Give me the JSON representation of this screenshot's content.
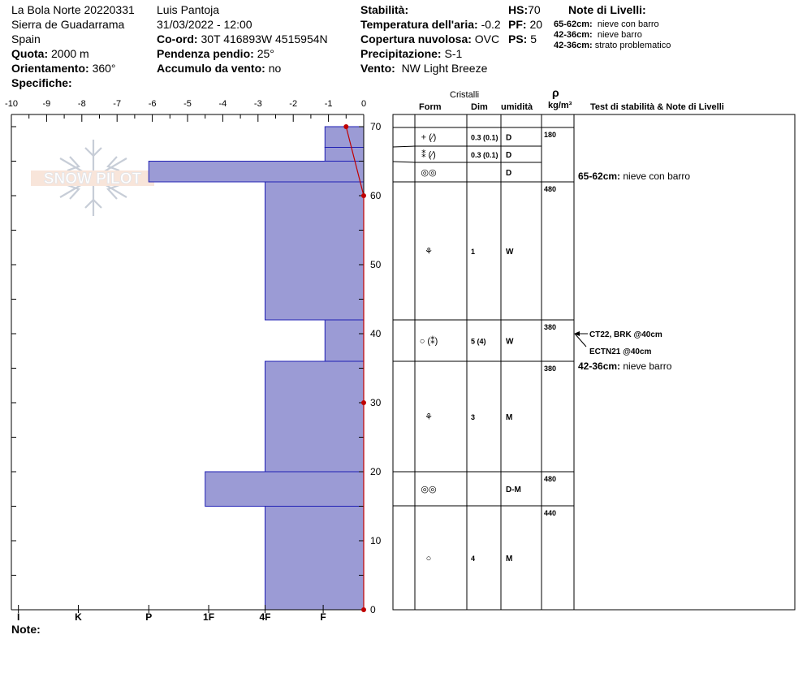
{
  "header": {
    "site": "La Bola Norte 20220331",
    "range": "Sierra de Guadarrama",
    "country": "Spain",
    "elevation_label": "Quota:",
    "elevation_value": "2000 m",
    "aspect_label": "Orientamento:",
    "aspect_value": "360°",
    "specifics_label": "Specifiche:",
    "observer": "Luis Pantoja",
    "datetime": "31/03/2022 - 12:00",
    "coord_label": "Co-ord:",
    "coord_value": "30T 416893W 4515954N",
    "slope_label": "Pendenza pendio:",
    "slope_value": "25°",
    "wind_load_label": "Accumulo da vento:",
    "wind_load_value": "no",
    "stability_label": "Stabilità:",
    "air_temp_label": "Temperatura dell'aria:",
    "air_temp_value": "-0.2",
    "sky_label": "Copertura nuvolosa:",
    "sky_value": "OVC",
    "precip_label": "Precipitazione:",
    "precip_value": "S-1",
    "wind_label": "Vento:",
    "wind_value": "NW Light Breeze",
    "hs_label": "HS:",
    "hs_value": "70",
    "pf_label": "PF:",
    "pf_value": "20",
    "ps_label": "PS:",
    "ps_value": "5",
    "layer_notes_title": "Note di Livelli:",
    "layer_notes": [
      {
        "range": "65-62cm:",
        "text": "nieve con barro"
      },
      {
        "range": "42-36cm:",
        "text": "nieve barro"
      },
      {
        "range": "42-36cm:",
        "text": "strato problematico"
      }
    ]
  },
  "watermark": {
    "text": "SNOW PILOT",
    "icon": "snowflake-logo"
  },
  "note_label": "Note:",
  "table": {
    "crystals_header": "Cristalli",
    "col_form": "Form",
    "col_size": "Dim",
    "col_moisture": "umidità",
    "col_density_symbol": "ρ",
    "col_density_unit": "kg/m³",
    "col_tests": "Test di stabilità & Note di Livelli",
    "tests": [
      "CT22, BRK @40cm",
      "ECTN21 @40cm"
    ],
    "layer_note_rows": [
      {
        "range": "65-62cm:",
        "text": "nieve con barro"
      },
      {
        "range": "42-36cm:",
        "text": "nieve barro"
      }
    ]
  },
  "chart_data": {
    "type": "snow-profile",
    "y_axis": {
      "label": "",
      "min": 0,
      "max": 70,
      "ticks": [
        0,
        10,
        20,
        30,
        40,
        50,
        60,
        70
      ]
    },
    "x_axis_temperature": {
      "min": -10,
      "max": 0,
      "ticks": [
        -10,
        -9,
        -8,
        -7,
        -6,
        -5,
        -4,
        -3,
        -2,
        -1,
        0
      ]
    },
    "hardness_scale": [
      "I",
      "K",
      "P",
      "1F",
      "4F",
      "F"
    ],
    "hardness_profile": [
      {
        "top": 70,
        "bottom": 67,
        "hardness_value": -1.1
      },
      {
        "top": 67,
        "bottom": 65,
        "hardness_value": -1.1
      },
      {
        "top": 65,
        "bottom": 62,
        "hardness_value": -6.1
      },
      {
        "top": 62,
        "bottom": 42,
        "hardness_value": -2.8
      },
      {
        "top": 42,
        "bottom": 36,
        "hardness_value": -1.1
      },
      {
        "top": 36,
        "bottom": 20,
        "hardness_value": -2.8
      },
      {
        "top": 20,
        "bottom": 15,
        "hardness_value": -4.5
      },
      {
        "top": 15,
        "bottom": 0,
        "hardness_value": -2.8
      }
    ],
    "temperature_profile": [
      {
        "depth": 70,
        "temp": -0.5
      },
      {
        "depth": 60,
        "temp": 0
      },
      {
        "depth": 30,
        "temp": 0
      },
      {
        "depth": 0,
        "temp": 0
      }
    ],
    "layers": [
      {
        "top": 70,
        "bottom": 67,
        "form": "+ (⁄)",
        "size": "0.3 (0.1)",
        "moisture": "D",
        "density": "180"
      },
      {
        "top": 67,
        "bottom": 65,
        "form": "⁑ (⁄)",
        "size": "0.3 (0.1)",
        "moisture": "D",
        "density": ""
      },
      {
        "top": 65,
        "bottom": 62,
        "form": "◎◎",
        "size": "",
        "moisture": "D",
        "density": ""
      },
      {
        "top": 62,
        "bottom": 42,
        "form": "⚘",
        "size": "1",
        "moisture": "W",
        "density": "480"
      },
      {
        "top": 42,
        "bottom": 36,
        "form": "○ (⁑)",
        "size": "5 (4)",
        "moisture": "W",
        "density": "380"
      },
      {
        "top": 36,
        "bottom": 20,
        "form": "⚘",
        "size": "3",
        "moisture": "M",
        "density": "380"
      },
      {
        "top": 20,
        "bottom": 15,
        "form": "◎◎",
        "size": "",
        "moisture": "D-M",
        "density": "480"
      },
      {
        "top": 15,
        "bottom": 0,
        "form": "○",
        "size": "4",
        "moisture": "M",
        "density": "440"
      }
    ],
    "colors": {
      "hardness_fill": "#9b9bd5",
      "hardness_stroke": "#1f1fb4",
      "temperature": "#c00000"
    }
  }
}
